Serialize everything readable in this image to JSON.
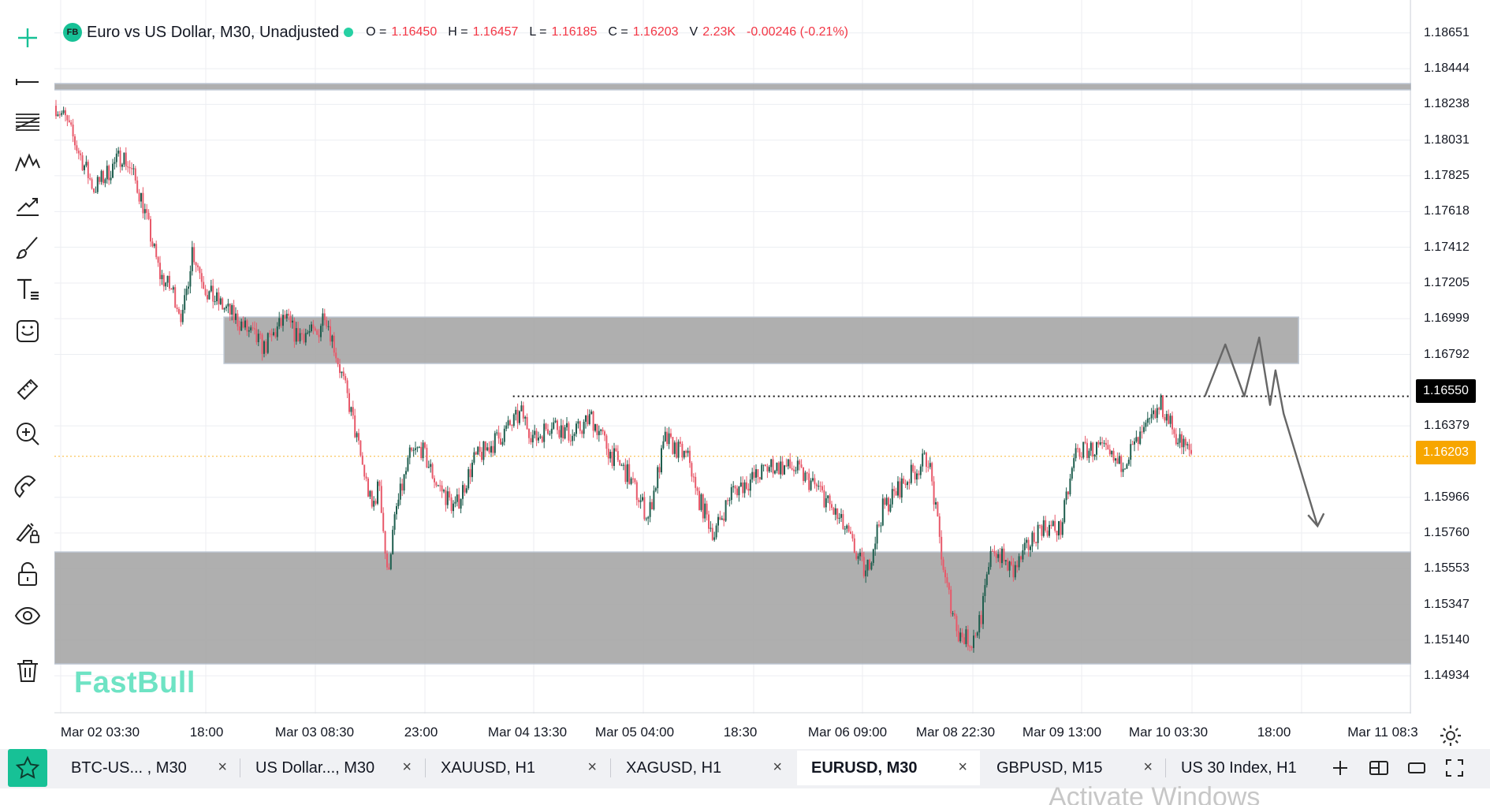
{
  "legend": {
    "badge": "FB",
    "title": "Euro vs US Dollar, M30, Unadjusted",
    "o_label": "O =",
    "o_value": "1.16450",
    "h_label": "H =",
    "h_value": "1.16457",
    "l_label": "L =",
    "l_value": "1.16185",
    "c_label": "C =",
    "c_value": "1.16203",
    "v_label": "V",
    "v_value": "2.23K",
    "change": "-0.00246 (-0.21%)"
  },
  "brand_watermark": "FastBull",
  "price_axis": {
    "labels": [
      "1.18651",
      "1.18444",
      "1.18238",
      "1.18031",
      "1.17825",
      "1.17618",
      "1.17412",
      "1.17205",
      "1.16999",
      "1.16792",
      "1.16379",
      "1.15966",
      "1.15760",
      "1.15553",
      "1.15347",
      "1.15140",
      "1.14934"
    ],
    "marker_black": "1.16550",
    "marker_orange": "1.16203"
  },
  "time_axis": {
    "labels": [
      "Mar 02 03:30",
      "18:00",
      "Mar 03 08:30",
      "23:00",
      "Mar 04 13:30",
      "Mar 05 04:00",
      "18:30",
      "Mar 06 09:00",
      "Mar 08 22:30",
      "Mar 09 13:00",
      "Mar 10 03:30",
      "18:00",
      "Mar 11 08:3"
    ]
  },
  "tabs": [
    {
      "label": "BTC-US...   , M30"
    },
    {
      "label": "US Dollar..., M30"
    },
    {
      "label": "XAUUSD, H1"
    },
    {
      "label": "XAGUSD, H1"
    },
    {
      "label": "EURUSD, M30"
    },
    {
      "label": "GBPUSD, M15"
    },
    {
      "label": "US 30 Index, H1"
    }
  ],
  "close_glyph": "×",
  "os_watermark": "Activate Windows",
  "colors": {
    "up": "#1e5e4e",
    "down": "#e8596a",
    "zone": "#a9a9a9",
    "accent": "#17c196",
    "orange": "#f7a600"
  },
  "chart_data": {
    "type": "candlestick",
    "symbol": "EURUSD",
    "timeframe": "M30",
    "y_range": [
      1.1483,
      1.1875
    ],
    "price_ticks": [
      1.18651,
      1.18444,
      1.18238,
      1.18031,
      1.17825,
      1.17618,
      1.17412,
      1.17205,
      1.16999,
      1.16792,
      1.16379,
      1.15966,
      1.1576,
      1.15553,
      1.15347,
      1.1514,
      1.14934
    ],
    "path_x": [
      0,
      5,
      20,
      28,
      35,
      40,
      45,
      55,
      62,
      67,
      72,
      80,
      95,
      110,
      121,
      127,
      132,
      138,
      142,
      148,
      155,
      162,
      167,
      171,
      175,
      180,
      187,
      193,
      201,
      211,
      221,
      235,
      246,
      253,
      262,
      273,
      283,
      293,
      302,
      313,
      322,
      335,
      338,
      348,
      357,
      368,
      378,
      391,
      404,
      417,
      428,
      437,
      448,
      461,
      470,
      477,
      484,
      489,
      495,
      506,
      520,
      531,
      539,
      551,
      562,
      573,
      584,
      593,
      600
    ],
    "path_y": [
      1.1823,
      1.1815,
      1.1775,
      1.1785,
      1.1795,
      1.1785,
      1.177,
      1.1725,
      1.1715,
      1.17,
      1.174,
      1.1715,
      1.17,
      1.1683,
      1.17,
      1.169,
      1.1692,
      1.169,
      1.1705,
      1.168,
      1.165,
      1.1615,
      1.159,
      1.1605,
      1.1552,
      1.159,
      1.162,
      1.1625,
      1.1605,
      1.159,
      1.1618,
      1.1632,
      1.1645,
      1.163,
      1.164,
      1.1632,
      1.1643,
      1.1622,
      1.161,
      1.1585,
      1.163,
      1.1618,
      1.16,
      1.1575,
      1.16,
      1.1607,
      1.1615,
      1.1613,
      1.16,
      1.1578,
      1.1552,
      1.159,
      1.1605,
      1.162,
      1.1548,
      1.1518,
      1.1513,
      1.1528,
      1.1568,
      1.1553,
      1.158,
      1.1578,
      1.1623,
      1.1625,
      1.1615,
      1.163,
      1.165,
      1.163,
      1.1622
    ],
    "zones": [
      {
        "x0": 0,
        "x1": 1,
        "y_top": 1.18358,
        "y_bot": 1.18322
      },
      {
        "x0": 0.125,
        "x1": 0.917,
        "y_top": 1.17008,
        "y_bot": 1.1674
      },
      {
        "x0": 0,
        "x1": 1,
        "y_top": 1.1565,
        "y_bot": 1.15003
      }
    ],
    "black_line": {
      "price": 1.1655,
      "x0": 0.338
    },
    "orange_line": {
      "price": 1.16203
    },
    "zigzag_x": [
      0.848,
      0.863,
      0.877,
      0.888,
      0.896,
      0.9,
      0.906,
      0.931
    ],
    "zigzag_y": [
      1.1655,
      1.1685,
      1.1655,
      1.1689,
      1.165,
      1.167,
      1.1645,
      1.158
    ]
  }
}
